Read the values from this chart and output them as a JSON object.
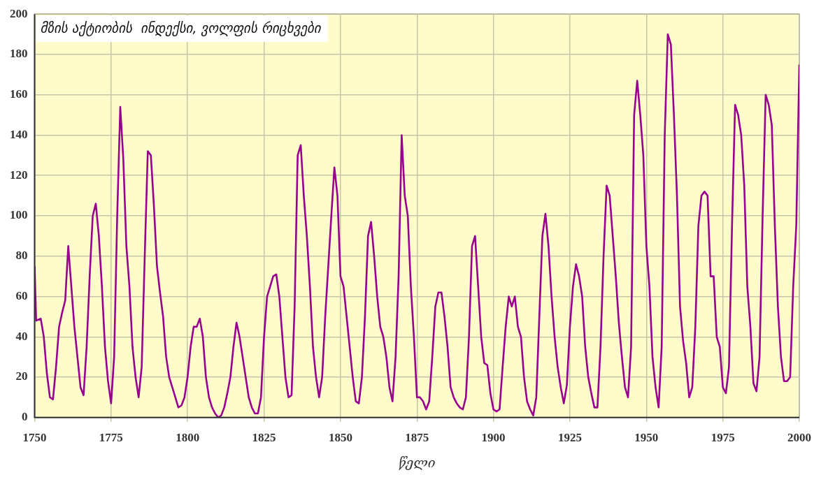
{
  "chart_data": {
    "type": "line",
    "title": "მზის აქტიობის  ინდექსი, ვოლფის რიცხვები",
    "xlabel": "წელი",
    "x": [
      1750,
      1750.5,
      1752,
      1753,
      1754,
      1755,
      1756,
      1757,
      1758,
      1759,
      1760,
      1761,
      1762,
      1763,
      1764,
      1765,
      1766,
      1767,
      1768,
      1769,
      1770,
      1771,
      1772,
      1773,
      1774,
      1775,
      1776,
      1777,
      1778,
      1779,
      1780,
      1781,
      1782,
      1783,
      1784,
      1785,
      1786,
      1787,
      1788,
      1789,
      1790,
      1791,
      1792,
      1793,
      1794,
      1795,
      1796,
      1797,
      1798,
      1799,
      1800,
      1801,
      1802,
      1803,
      1804,
      1805,
      1806,
      1807,
      1808,
      1809,
      1810,
      1811,
      1812,
      1813,
      1814,
      1815,
      1816,
      1817,
      1818,
      1819,
      1820,
      1821,
      1822,
      1823,
      1824,
      1825,
      1826,
      1827,
      1828,
      1829,
      1830,
      1831,
      1832,
      1833,
      1834,
      1835,
      1836,
      1837,
      1838,
      1839,
      1840,
      1841,
      1842,
      1843,
      1844,
      1845,
      1846,
      1847,
      1848,
      1849,
      1850,
      1851,
      1852,
      1853,
      1854,
      1855,
      1856,
      1857,
      1858,
      1859,
      1860,
      1861,
      1862,
      1863,
      1864,
      1865,
      1866,
      1867,
      1868,
      1869,
      1870,
      1871,
      1872,
      1873,
      1874,
      1875,
      1876,
      1877,
      1878,
      1879,
      1880,
      1881,
      1882,
      1883,
      1884,
      1885,
      1886,
      1887,
      1888,
      1889,
      1890,
      1891,
      1892,
      1893,
      1894,
      1895,
      1896,
      1897,
      1898,
      1899,
      1900,
      1901,
      1902,
      1903,
      1904,
      1905,
      1906,
      1907,
      1908,
      1909,
      1910,
      1911,
      1912,
      1913,
      1914,
      1915,
      1916,
      1917,
      1918,
      1919,
      1920,
      1921,
      1922,
      1923,
      1924,
      1925,
      1926,
      1927,
      1928,
      1929,
      1930,
      1931,
      1932,
      1933,
      1934,
      1935,
      1936,
      1937,
      1938,
      1939,
      1940,
      1941,
      1942,
      1943,
      1944,
      1945,
      1946,
      1947,
      1948,
      1949,
      1950,
      1951,
      1952,
      1953,
      1954,
      1955,
      1956,
      1957,
      1958,
      1959,
      1960,
      1961,
      1962,
      1963,
      1964,
      1965,
      1966,
      1967,
      1968,
      1969,
      1970,
      1971,
      1972,
      1973,
      1974,
      1975,
      1976,
      1977,
      1978,
      1979,
      1980,
      1981,
      1982,
      1983,
      1984,
      1985,
      1986,
      1987,
      1988,
      1989,
      1990,
      1991,
      1992,
      1993,
      1994,
      1995,
      1996,
      1997,
      1998,
      1999,
      2000
    ],
    "series": [
      {
        "color": "#99008f",
        "values": [
          75,
          48,
          49,
          40,
          22,
          10,
          9,
          25,
          45,
          52,
          58,
          85,
          65,
          45,
          30,
          15,
          11,
          35,
          70,
          100,
          106,
          90,
          65,
          35,
          18,
          7,
          30,
          100,
          154,
          128,
          85,
          65,
          35,
          20,
          10,
          25,
          80,
          132,
          130,
          105,
          75,
          62,
          50,
          30,
          20,
          15,
          10,
          5,
          6,
          10,
          20,
          35,
          45,
          45,
          49,
          40,
          20,
          10,
          5,
          2,
          0,
          1,
          5,
          12,
          20,
          35,
          47,
          40,
          30,
          20,
          10,
          5,
          2,
          2,
          10,
          40,
          60,
          65,
          70,
          71,
          60,
          40,
          20,
          10,
          11,
          55,
          130,
          135,
          110,
          90,
          65,
          35,
          20,
          10,
          20,
          50,
          75,
          100,
          124,
          110,
          70,
          65,
          50,
          35,
          20,
          8,
          7,
          20,
          50,
          90,
          97,
          80,
          60,
          45,
          40,
          30,
          15,
          8,
          30,
          70,
          140,
          110,
          100,
          65,
          40,
          10,
          10,
          8,
          4,
          8,
          30,
          55,
          62,
          62,
          50,
          35,
          15,
          10,
          7,
          5,
          4,
          10,
          40,
          85,
          90,
          65,
          40,
          27,
          26,
          12,
          4,
          3,
          4,
          25,
          45,
          60,
          55,
          60,
          45,
          40,
          20,
          8,
          4,
          1,
          10,
          50,
          90,
          101,
          85,
          60,
          40,
          25,
          15,
          7,
          16,
          45,
          65,
          76,
          70,
          60,
          35,
          20,
          12,
          5,
          5,
          35,
          80,
          115,
          110,
          90,
          70,
          47,
          30,
          15,
          10,
          35,
          150,
          167,
          150,
          130,
          85,
          65,
          30,
          15,
          5,
          35,
          140,
          190,
          185,
          150,
          110,
          55,
          38,
          27,
          10,
          15,
          45,
          95,
          110,
          112,
          110,
          70,
          70,
          40,
          35,
          15,
          12,
          25,
          95,
          155,
          150,
          140,
          115,
          65,
          45,
          17,
          13,
          30,
          100,
          160,
          155,
          145,
          95,
          55,
          30,
          18,
          18,
          20,
          65,
          95,
          175
        ]
      }
    ],
    "xlim": [
      1750,
      2000
    ],
    "xticks": [
      1750,
      1775,
      1800,
      1825,
      1850,
      1875,
      1900,
      1925,
      1950,
      1975,
      2000
    ],
    "ylim": [
      0,
      200
    ],
    "yticks": [
      0,
      20,
      40,
      60,
      80,
      100,
      120,
      140,
      160,
      180,
      200
    ],
    "grid": true,
    "legend": false,
    "marker": "none",
    "line_style": "solid"
  }
}
